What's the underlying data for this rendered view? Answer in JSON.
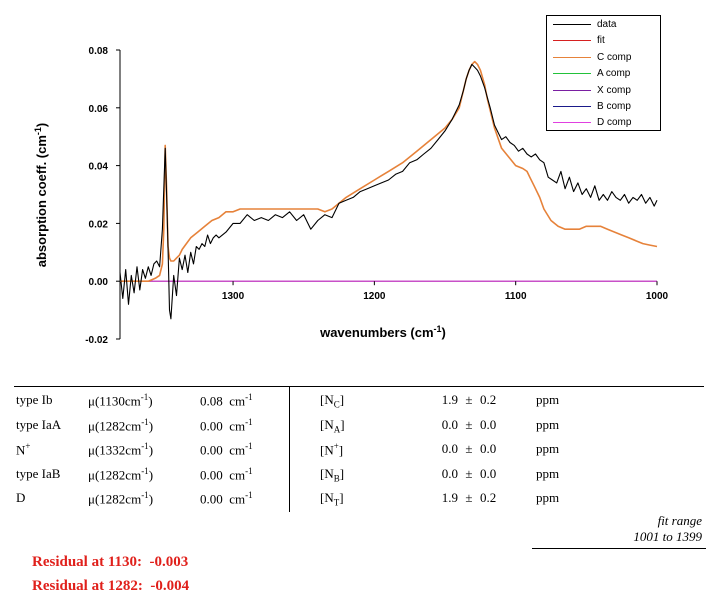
{
  "chart_data": {
    "type": "line",
    "xlabel": "wavenumbers (cm",
    "xlabel_sup": "-1",
    "xlabel_tail": ")",
    "ylabel": "absorption coeff. (cm",
    "ylabel_sup": "-1",
    "ylabel_tail": ")",
    "xlim": [
      1000,
      1380
    ],
    "ylim": [
      -0.02,
      0.08
    ],
    "x_reversed": true,
    "x_ticks": [
      "1300",
      "1200",
      "1100",
      "1000"
    ],
    "y_ticks": [
      "-0.02",
      "0.00",
      "0.02",
      "0.04",
      "0.06",
      "0.08"
    ],
    "grid": false,
    "legend_position": "top-right",
    "legend": [
      {
        "label": "data",
        "color": "#000000"
      },
      {
        "label": "fit",
        "color": "#d62020"
      },
      {
        "label": "C comp",
        "color": "#e6823a"
      },
      {
        "label": "A comp",
        "color": "#22c23a"
      },
      {
        "label": "X comp",
        "color": "#7a1fa2"
      },
      {
        "label": "B comp",
        "color": "#1a1a8a"
      },
      {
        "label": "D comp",
        "color": "#e040e0"
      }
    ],
    "series": [
      {
        "name": "data",
        "color": "#000000",
        "x": [
          1380,
          1378,
          1376,
          1374,
          1372,
          1370,
          1368,
          1366,
          1364,
          1362,
          1360,
          1358,
          1356,
          1354,
          1352,
          1350,
          1348,
          1347,
          1346,
          1345,
          1344,
          1342,
          1340,
          1338,
          1336,
          1334,
          1332,
          1330,
          1328,
          1326,
          1324,
          1322,
          1320,
          1318,
          1316,
          1314,
          1312,
          1310,
          1305,
          1300,
          1295,
          1290,
          1285,
          1280,
          1275,
          1270,
          1265,
          1260,
          1255,
          1250,
          1245,
          1240,
          1235,
          1230,
          1225,
          1220,
          1215,
          1210,
          1205,
          1200,
          1195,
          1190,
          1185,
          1180,
          1175,
          1170,
          1165,
          1160,
          1155,
          1150,
          1145,
          1140,
          1137,
          1135,
          1133,
          1131,
          1129,
          1127,
          1125,
          1122,
          1118,
          1115,
          1112,
          1110,
          1107,
          1104,
          1101,
          1098,
          1095,
          1092,
          1089,
          1086,
          1083,
          1080,
          1077,
          1074,
          1071,
          1068,
          1065,
          1062,
          1059,
          1056,
          1053,
          1050,
          1047,
          1044,
          1041,
          1038,
          1035,
          1032,
          1029,
          1026,
          1023,
          1020,
          1017,
          1014,
          1011,
          1008,
          1005,
          1002,
          1000
        ],
        "y": [
          0.003,
          -0.006,
          0.004,
          -0.008,
          0.002,
          -0.004,
          0.005,
          -0.003,
          0.004,
          0.001,
          0.005,
          0.002,
          0.006,
          0.007,
          0.005,
          0.018,
          0.046,
          0.03,
          0.012,
          -0.01,
          -0.013,
          0.002,
          -0.005,
          0.008,
          0.004,
          0.009,
          0.003,
          0.01,
          0.006,
          0.012,
          0.011,
          0.013,
          0.012,
          0.016,
          0.013,
          0.015,
          0.016,
          0.015,
          0.017,
          0.02,
          0.02,
          0.023,
          0.021,
          0.022,
          0.021,
          0.023,
          0.022,
          0.024,
          0.021,
          0.023,
          0.018,
          0.021,
          0.023,
          0.022,
          0.027,
          0.028,
          0.029,
          0.031,
          0.032,
          0.033,
          0.034,
          0.035,
          0.037,
          0.038,
          0.041,
          0.042,
          0.044,
          0.046,
          0.049,
          0.052,
          0.056,
          0.061,
          0.066,
          0.07,
          0.073,
          0.075,
          0.074,
          0.073,
          0.071,
          0.067,
          0.06,
          0.054,
          0.051,
          0.049,
          0.05,
          0.048,
          0.047,
          0.045,
          0.046,
          0.044,
          0.043,
          0.044,
          0.042,
          0.041,
          0.036,
          0.035,
          0.034,
          0.038,
          0.032,
          0.036,
          0.031,
          0.034,
          0.03,
          0.032,
          0.029,
          0.033,
          0.028,
          0.03,
          0.028,
          0.031,
          0.029,
          0.028,
          0.03,
          0.027,
          0.029,
          0.028,
          0.03,
          0.027,
          0.029,
          0.026,
          0.028
        ]
      },
      {
        "name": "C comp",
        "color": "#e6823a",
        "x": [
          1380,
          1370,
          1360,
          1355,
          1352,
          1350,
          1349,
          1348,
          1347,
          1346,
          1345,
          1344,
          1342,
          1340,
          1338,
          1336,
          1333,
          1330,
          1325,
          1320,
          1315,
          1310,
          1305,
          1300,
          1295,
          1290,
          1280,
          1270,
          1260,
          1250,
          1240,
          1235,
          1230,
          1225,
          1220,
          1210,
          1200,
          1190,
          1180,
          1170,
          1160,
          1150,
          1145,
          1140,
          1137,
          1135,
          1133,
          1131,
          1129,
          1127,
          1125,
          1122,
          1120,
          1115,
          1110,
          1105,
          1100,
          1095,
          1092,
          1090,
          1087,
          1083,
          1080,
          1075,
          1070,
          1065,
          1060,
          1055,
          1050,
          1045,
          1040,
          1035,
          1030,
          1025,
          1020,
          1015,
          1010,
          1005,
          1000
        ],
        "y": [
          0.0,
          0.0,
          0.0,
          0.001,
          0.002,
          0.006,
          0.018,
          0.047,
          0.032,
          0.012,
          0.008,
          0.007,
          0.007,
          0.008,
          0.009,
          0.011,
          0.013,
          0.015,
          0.017,
          0.019,
          0.021,
          0.022,
          0.024,
          0.024,
          0.025,
          0.025,
          0.025,
          0.025,
          0.025,
          0.025,
          0.025,
          0.024,
          0.025,
          0.027,
          0.029,
          0.032,
          0.035,
          0.038,
          0.041,
          0.045,
          0.049,
          0.053,
          0.056,
          0.06,
          0.066,
          0.07,
          0.073,
          0.075,
          0.076,
          0.075,
          0.073,
          0.068,
          0.063,
          0.053,
          0.046,
          0.043,
          0.04,
          0.039,
          0.038,
          0.036,
          0.033,
          0.029,
          0.025,
          0.021,
          0.019,
          0.018,
          0.018,
          0.018,
          0.019,
          0.019,
          0.019,
          0.018,
          0.017,
          0.016,
          0.015,
          0.014,
          0.013,
          0.0125,
          0.012
        ]
      },
      {
        "name": "D comp",
        "color": "#e040e0",
        "x": [
          1380,
          1000
        ],
        "y": [
          0.0,
          0.0
        ]
      }
    ]
  },
  "results": {
    "rows": [
      {
        "type": "type Ib",
        "mu_pre": "μ(1130cm",
        "mu_sup": "-1",
        "mu_post": ")",
        "value": "0.08",
        "unit": "cm",
        "unit_sup": "-1",
        "br_main": "[N",
        "br_sub": "C",
        "br_sup": "",
        "br_end": "]",
        "num": "1.9",
        "pm": "±",
        "err": "0.2",
        "ppm": "ppm"
      },
      {
        "type": "type IaA",
        "mu_pre": "μ(1282cm",
        "mu_sup": "-1",
        "mu_post": ")",
        "value": "0.00",
        "unit": "cm",
        "unit_sup": "-1",
        "br_main": "[N",
        "br_sub": "A",
        "br_sup": "",
        "br_end": "]",
        "num": "0.0",
        "pm": "±",
        "err": "0.0",
        "ppm": "ppm"
      },
      {
        "type": "N",
        "type_sup": "+",
        "mu_pre": "μ(1332cm",
        "mu_sup": "-1",
        "mu_post": ")",
        "value": "0.00",
        "unit": "cm",
        "unit_sup": "-1",
        "br_main": "[N",
        "br_sub": "",
        "br_sup": "+",
        "br_end": "]",
        "num": "0.0",
        "pm": "±",
        "err": "0.0",
        "ppm": "ppm"
      },
      {
        "type": "type IaB",
        "mu_pre": "μ(1282cm",
        "mu_sup": "-1",
        "mu_post": ")",
        "value": "0.00",
        "unit": "cm",
        "unit_sup": "-1",
        "br_main": "[N",
        "br_sub": "B",
        "br_sup": "",
        "br_end": "]",
        "num": "0.0",
        "pm": "±",
        "err": "0.0",
        "ppm": "ppm"
      },
      {
        "type": "D",
        "mu_pre": "μ(1282cm",
        "mu_sup": "-1",
        "mu_post": ")",
        "value": "0.00",
        "unit": "cm",
        "unit_sup": "-1",
        "br_main": "[N",
        "br_sub": "T",
        "br_sup": "",
        "br_end": "]",
        "num": "1.9",
        "pm": "±",
        "err": "0.2",
        "ppm": "ppm"
      }
    ]
  },
  "fit_range": {
    "label": "fit range",
    "value": "1001 to 1399"
  },
  "residuals": [
    {
      "label": "Residual at 1130:",
      "value": "-0.003"
    },
    {
      "label": "Residual at 1282:",
      "value": "-0.004"
    }
  ]
}
